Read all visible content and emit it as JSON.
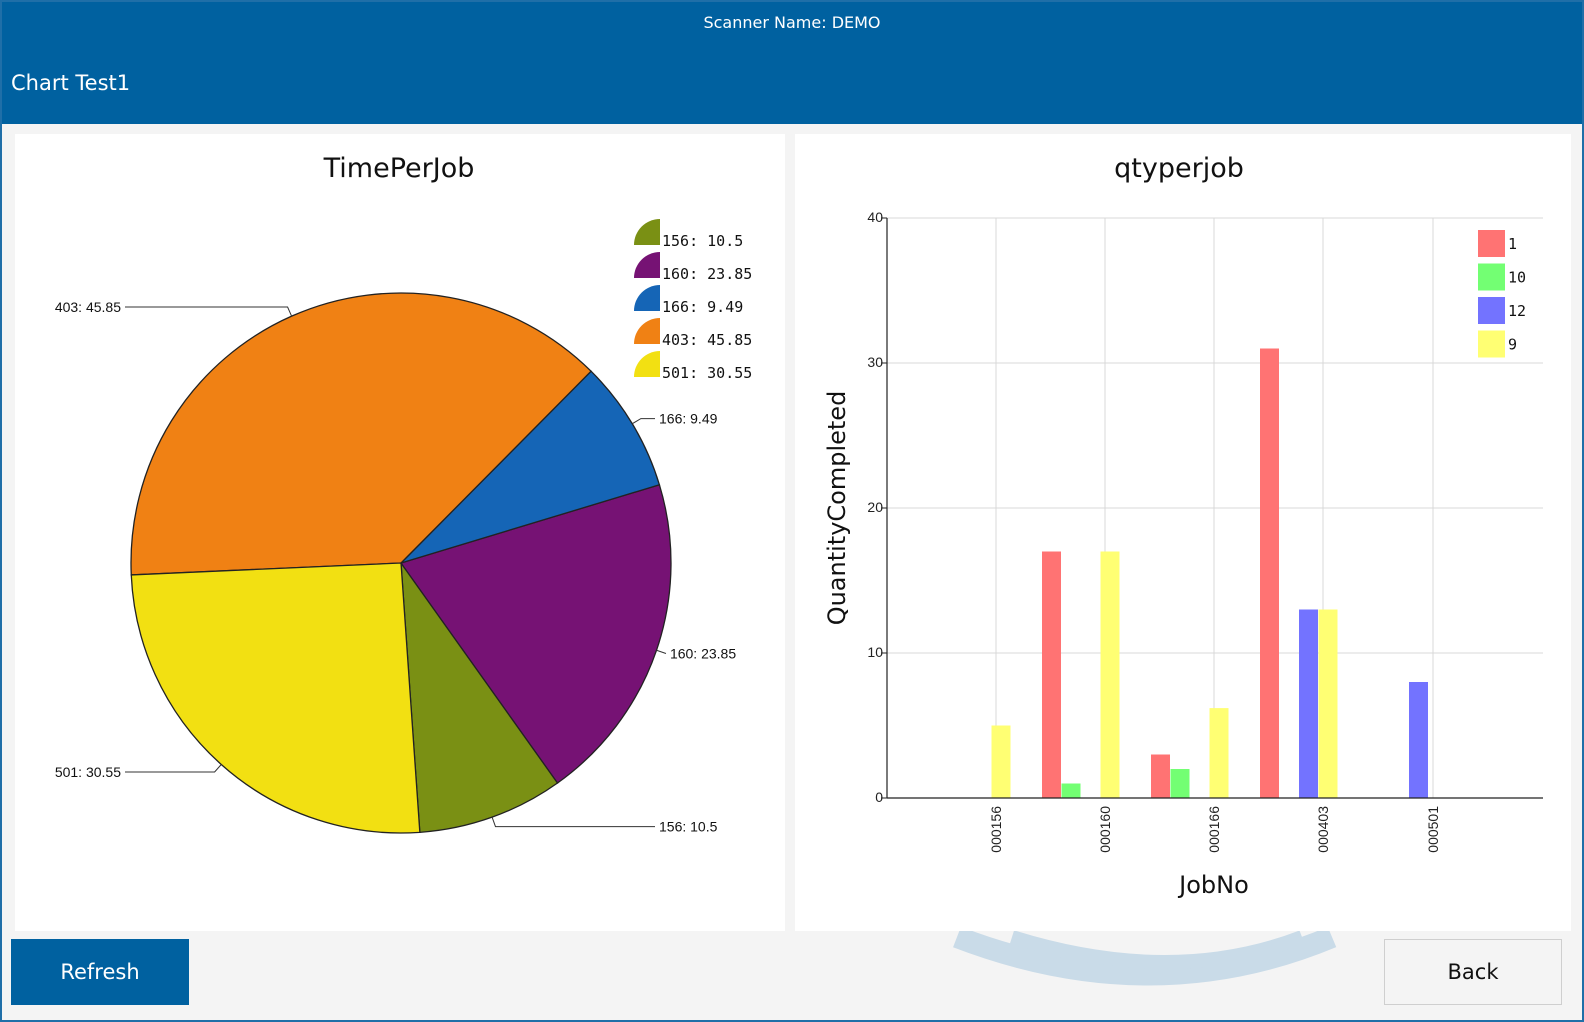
{
  "header": {
    "scanner_label": "Scanner Name: DEMO",
    "screen_title": "Chart Test1"
  },
  "buttons": {
    "refresh": "Refresh",
    "back": "Back"
  },
  "colors": {
    "header_bg": "#0061a0",
    "refresh_bg": "#0061a0"
  },
  "chart_data": [
    {
      "type": "pie",
      "title": "TimePerJob",
      "slices": [
        {
          "label": "156",
          "value": 10.5,
          "legend": "156: 10.5",
          "callout": "156: 10.5",
          "color": "#7a9014"
        },
        {
          "label": "160",
          "value": 23.85,
          "legend": "160: 23.85",
          "callout": "160: 23.85",
          "color": "#761274"
        },
        {
          "label": "166",
          "value": 9.49,
          "legend": "166: 9.49",
          "callout": "166: 9.49",
          "color": "#1565b6"
        },
        {
          "label": "403",
          "value": 45.85,
          "legend": "403: 45.85",
          "callout": "403: 45.85",
          "color": "#f08114"
        },
        {
          "label": "501",
          "value": 30.55,
          "legend": "501: 30.55",
          "callout": "501: 30.55",
          "color": "#f2e012"
        }
      ],
      "legend_position": "top-right"
    },
    {
      "type": "bar",
      "title": "qtyperjob",
      "xlabel": "JobNo",
      "ylabel": "QuantityCompleted",
      "categories": [
        "000156",
        "000160",
        "000166",
        "000403",
        "000501"
      ],
      "ylim": [
        0,
        40
      ],
      "yticks": [
        0,
        10,
        20,
        30,
        40
      ],
      "grid": true,
      "legend_position": "top-right",
      "series": [
        {
          "name": "1",
          "color": "#ff7373",
          "values": [
            0,
            17,
            3,
            31,
            0
          ]
        },
        {
          "name": "10",
          "color": "#73ff73",
          "values": [
            0,
            1,
            2,
            0,
            0
          ]
        },
        {
          "name": "12",
          "color": "#7373ff",
          "values": [
            0,
            0,
            0,
            13,
            8
          ]
        },
        {
          "name": "9",
          "color": "#ffff73",
          "values": [
            5,
            17,
            6.2,
            13,
            0
          ]
        }
      ]
    }
  ]
}
